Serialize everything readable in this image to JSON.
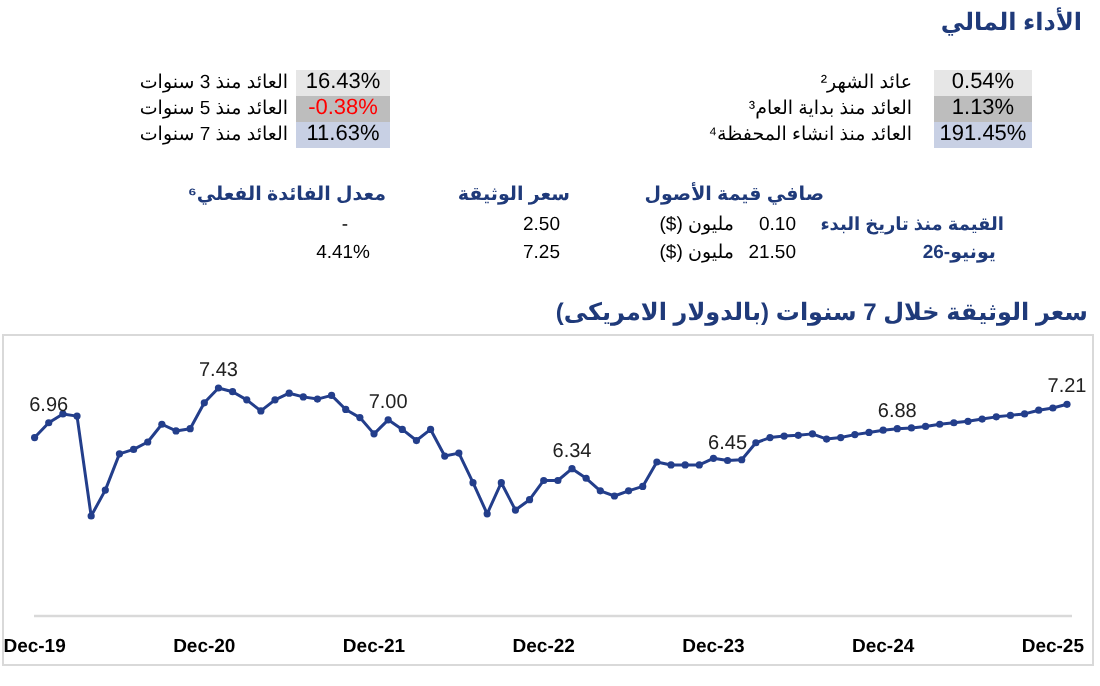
{
  "chart_data": [
    {
      "type": "other",
      "title": "الأداء المالي",
      "annotations": [
        "عائد الشهر²",
        "0.54%",
        "العائد منذ بداية العام³",
        "1.13%",
        "العائد منذ انشاء المحفظة⁴",
        "191.45%",
        "العائد منذ 3 سنوات",
        "16.43%",
        "العائد منذ 5 سنوات",
        "-0.38%",
        "العائد منذ 7 سنوات",
        "11.63%",
        "صافي قيمة الأصول",
        "سعر الوثيقة",
        "معدل الفائدة الفعلي⁶",
        "القيمة منذ تاريخ البدء",
        "0.10",
        "مليون ($)",
        "2.50",
        "-",
        "يونيو-26",
        "21.50",
        "مليون ($)",
        "7.25",
        "4.41%"
      ]
    },
    {
      "type": "line",
      "title": "سعر الوثيقة خلال 7 سنوات (بالدولار الامريكى)",
      "tick_labels": "x",
      "marker": "circle",
      "categories": [
        "Dec-19",
        null,
        null,
        null,
        null,
        null,
        null,
        null,
        null,
        null,
        null,
        null,
        "Dec-20",
        null,
        null,
        null,
        null,
        null,
        null,
        null,
        null,
        null,
        null,
        null,
        "Dec-21",
        null,
        null,
        null,
        null,
        null,
        null,
        null,
        null,
        null,
        null,
        null,
        "Dec-22",
        null,
        null,
        null,
        null,
        null,
        null,
        null,
        null,
        null,
        null,
        null,
        "Dec-23",
        null,
        null,
        null,
        null,
        null,
        null,
        null,
        null,
        null,
        null,
        null,
        "Dec-24",
        null,
        null,
        null,
        null,
        null,
        null,
        null,
        null,
        null,
        null,
        null,
        "Dec-25",
        null
      ],
      "series": [
        {
          "color": "#233e8b",
          "values": [
            6.76,
            6.96,
            7.08,
            7.05,
            5.7,
            6.05,
            6.54,
            6.6,
            6.7,
            6.94,
            6.85,
            6.88,
            7.23,
            7.43,
            7.38,
            7.27,
            7.12,
            7.27,
            7.36,
            7.31,
            7.28,
            7.33,
            7.14,
            7.03,
            6.81,
            7.0,
            6.87,
            6.72,
            6.87,
            6.51,
            6.55,
            6.15,
            5.73,
            6.15,
            5.78,
            5.92,
            6.18,
            6.18,
            6.34,
            6.21,
            6.04,
            5.97,
            6.04,
            6.1,
            6.43,
            6.39,
            6.39,
            6.39,
            6.48,
            6.45,
            6.46,
            6.69,
            6.76,
            6.78,
            6.79,
            6.81,
            6.74,
            6.76,
            6.8,
            6.83,
            6.86,
            6.88,
            6.89,
            6.91,
            6.94,
            6.96,
            6.98,
            7.01,
            7.04,
            7.06,
            7.08,
            7.13,
            7.16,
            7.21
          ],
          "value_labels": [
            null,
            "6.96",
            null,
            null,
            null,
            null,
            null,
            null,
            null,
            null,
            null,
            null,
            null,
            "7.43",
            null,
            null,
            null,
            null,
            null,
            null,
            null,
            null,
            null,
            null,
            null,
            "7.00",
            null,
            null,
            null,
            null,
            null,
            null,
            null,
            null,
            null,
            null,
            null,
            null,
            "6.34",
            null,
            null,
            null,
            null,
            null,
            null,
            null,
            null,
            null,
            null,
            "6.45",
            null,
            null,
            null,
            null,
            null,
            null,
            null,
            null,
            null,
            null,
            null,
            "6.88",
            null,
            null,
            null,
            null,
            null,
            null,
            null,
            null,
            null,
            null,
            null,
            "7.21"
          ]
        }
      ]
    }
  ]
}
